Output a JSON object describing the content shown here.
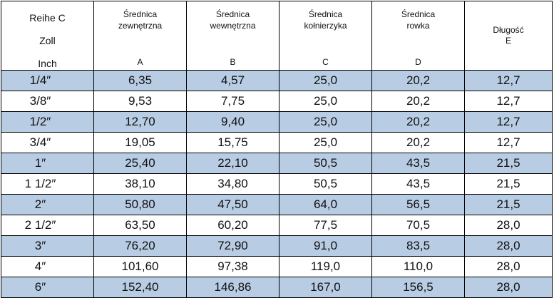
{
  "table": {
    "headers": [
      {
        "lines": [
          "Reihe C",
          "Zoll",
          "Inch"
        ],
        "letter": ""
      },
      {
        "lines": [
          "Średnica",
          "zewnętrzna"
        ],
        "letter": "A"
      },
      {
        "lines": [
          "Średnica",
          "wewnętrzna"
        ],
        "letter": "B"
      },
      {
        "lines": [
          "Średnica",
          "kołnierzyka"
        ],
        "letter": "C"
      },
      {
        "lines": [
          "Średnica",
          "rowka"
        ],
        "letter": "D"
      },
      {
        "lines": [
          "Długość",
          "E"
        ],
        "letter": ""
      }
    ],
    "rows": [
      [
        "1/4″",
        "6,35",
        "4,57",
        "25,0",
        "20,2",
        "12,7"
      ],
      [
        "3/8″",
        "9,53",
        "7,75",
        "25,0",
        "20,2",
        "12,7"
      ],
      [
        "1/2″",
        "12,70",
        "9,40",
        "25,0",
        "20,2",
        "12,7"
      ],
      [
        "3/4″",
        "19,05",
        "15,75",
        "25,0",
        "20,2",
        "12,7"
      ],
      [
        "1″",
        "25,40",
        "22,10",
        "50,5",
        "43,5",
        "21,5"
      ],
      [
        "1 1/2″",
        "38,10",
        "34,80",
        "50,5",
        "43,5",
        "21,5"
      ],
      [
        "2″",
        "50,80",
        "47,50",
        "64,0",
        "56,5",
        "21,5"
      ],
      [
        "2 1/2″",
        "63,50",
        "60,20",
        "77,5",
        "70,5",
        "28,0"
      ],
      [
        "3″",
        "76,20",
        "72,90",
        "91,0",
        "83,5",
        "28,0"
      ],
      [
        "4″",
        "101,60",
        "97,38",
        "119,0",
        "110,0",
        "28,0"
      ],
      [
        "6″",
        "152,40",
        "146,86",
        "167,0",
        "156,5",
        "28,0"
      ]
    ]
  },
  "colors": {
    "shaded_row": "#b8cce4",
    "plain_row": "#ffffff",
    "border": "#000000"
  }
}
